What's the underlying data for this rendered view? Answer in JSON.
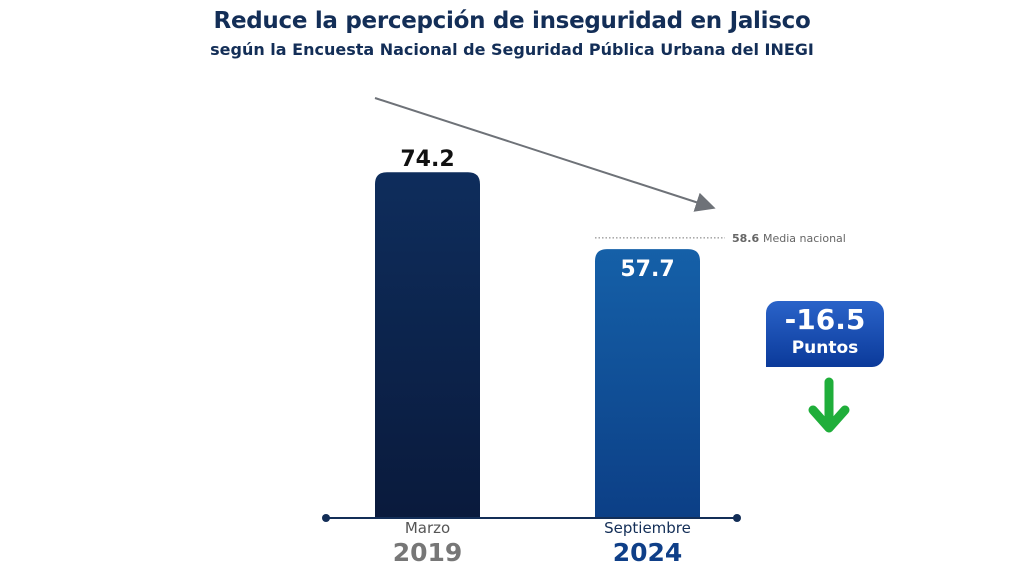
{
  "chart_data": {
    "type": "bar",
    "title_bold": "Reduce",
    "title_rest": "la percepción de inseguridad en Jalisco",
    "subtitle": "según la  Encuesta  Nacional de Seguridad Pública Urbana del INEGI",
    "categories": [
      {
        "month": "Marzo",
        "year": "2019"
      },
      {
        "month": "Septiembre",
        "year": "2024"
      }
    ],
    "values": [
      74.2,
      57.7
    ],
    "value_labels": [
      "74.2",
      "57.7"
    ],
    "reference_line": {
      "value": 58.6,
      "value_label": "58.6",
      "label": "Media nacional"
    },
    "change": {
      "value": "-16.5",
      "unit": "Puntos"
    },
    "ylim": [
      0,
      80
    ],
    "colors": {
      "bar1": "#0d2450",
      "bar2": "#0f4f98",
      "arrow_down": "#1fae3a",
      "title": "#132e57"
    }
  }
}
